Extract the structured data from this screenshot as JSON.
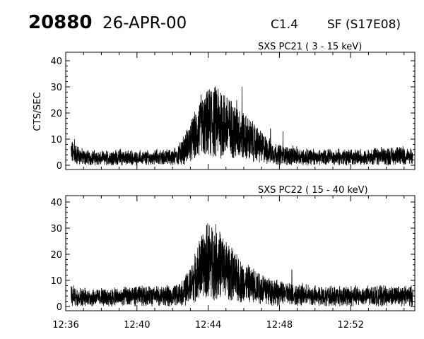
{
  "header": {
    "event_id": "20880",
    "date": "26-APR-00",
    "goes_class": "C1.4",
    "flare_info": "SF (S17E08)"
  },
  "chart_data": [
    {
      "type": "line",
      "title": "SXS PC21  (  3 - 15 keV)",
      "ylabel": "CTS/SEC",
      "xlabel": "",
      "ylim": [
        0,
        40
      ],
      "yticks": [
        0,
        10,
        20,
        30,
        40
      ],
      "xlim_minutes": [
        0,
        20
      ],
      "xticks": [
        "12:36",
        "12:40",
        "12:44",
        "12:48",
        "12:52"
      ],
      "grid": false,
      "series": [
        {
          "x_minutes": [
            0.3,
            1,
            2,
            3,
            4,
            5,
            6,
            6.5,
            7,
            7.5,
            8,
            8.5,
            9,
            9.5,
            10,
            10.5,
            11,
            11.5,
            12,
            13,
            14,
            15,
            16,
            17,
            18,
            19,
            19.5
          ],
          "values": [
            5,
            3,
            2.5,
            3,
            2.5,
            3,
            3,
            5,
            9,
            13,
            16,
            17,
            15,
            13,
            11,
            9,
            7,
            5,
            4,
            3.5,
            3,
            3,
            3,
            3,
            3.5,
            3.5,
            3
          ],
          "peaks_minutes": [
            0.1,
            0.5,
            7.6,
            8.4,
            9.9,
            8.8,
            9.6,
            11.5,
            12.2
          ],
          "peaks_values": [
            11,
            10,
            27,
            25,
            30,
            22,
            25,
            14,
            13
          ]
        }
      ]
    },
    {
      "type": "line",
      "title": "SXS PC22  ( 15 - 40 keV)",
      "ylabel": "",
      "xlabel": "",
      "ylim": [
        0,
        40
      ],
      "yticks": [
        0,
        10,
        20,
        30,
        40
      ],
      "xlim_minutes": [
        0,
        20
      ],
      "xticks": [
        "12:36",
        "12:40",
        "12:44",
        "12:48",
        "12:52"
      ],
      "grid": false,
      "series": [
        {
          "x_minutes": [
            0.3,
            1,
            2,
            3,
            4,
            5,
            6,
            6.5,
            7,
            7.5,
            8,
            8.5,
            9,
            9.5,
            10,
            10.5,
            11,
            11.5,
            12,
            13,
            14,
            15,
            16,
            17,
            18,
            19,
            19.5
          ],
          "values": [
            4,
            3.5,
            3.5,
            3.5,
            4,
            4,
            4,
            5,
            8,
            14,
            18,
            17,
            14,
            11,
            9,
            8,
            7,
            6,
            5,
            4.5,
            4,
            4,
            4,
            4,
            4,
            4,
            4
          ],
          "peaks_minutes": [
            7.6,
            8.0,
            8.4,
            8.9,
            9.3,
            12.7
          ],
          "peaks_values": [
            25,
            27,
            24,
            22,
            20,
            14
          ]
        }
      ]
    }
  ]
}
